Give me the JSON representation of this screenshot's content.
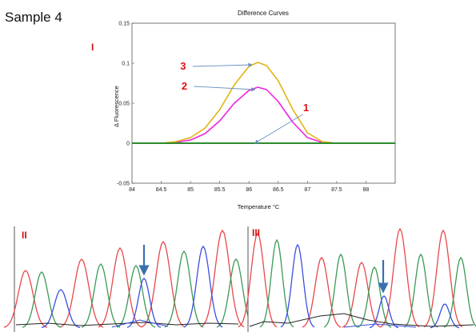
{
  "header": {
    "sample_label": "Sample 4"
  },
  "panels": {
    "I": "I",
    "II": "II",
    "III": "III"
  },
  "chart_data": {
    "type": "line",
    "title": "Difference Curves",
    "xlabel": "Temperature °C",
    "ylabel": "Δ Fluorescence",
    "xlim": [
      84,
      88.5
    ],
    "ylim": [
      -0.05,
      0.15
    ],
    "xticks": [
      "84",
      "84.5",
      "85",
      "85.5",
      "86",
      "86.5",
      "87",
      "87.5",
      "88"
    ],
    "yticks": [
      "0.15",
      "0.1",
      "0.05",
      "0",
      "-0.05"
    ],
    "series": [
      {
        "name": "1",
        "color": "#2e8b2e",
        "x": [
          84.0,
          84.5,
          85.0,
          85.5,
          86.0,
          86.5,
          87.0,
          87.5,
          88.0,
          88.5
        ],
        "y": [
          0,
          0,
          0,
          0,
          0,
          0,
          0,
          0,
          0,
          0
        ]
      },
      {
        "name": "2",
        "color": "#ee22dd",
        "x": [
          84.5,
          84.75,
          85.0,
          85.25,
          85.5,
          85.75,
          86.0,
          86.15,
          86.3,
          86.5,
          86.75,
          87.0,
          87.25,
          87.5,
          87.75
        ],
        "y": [
          0,
          0.001,
          0.004,
          0.012,
          0.028,
          0.05,
          0.066,
          0.07,
          0.067,
          0.052,
          0.026,
          0.007,
          0.001,
          0,
          0
        ]
      },
      {
        "name": "3",
        "color": "#e0b414",
        "x": [
          84.5,
          84.75,
          85.0,
          85.25,
          85.5,
          85.75,
          86.0,
          86.15,
          86.3,
          86.5,
          86.75,
          87.0,
          87.25,
          87.5,
          87.75
        ],
        "y": [
          0,
          0.002,
          0.007,
          0.019,
          0.042,
          0.073,
          0.096,
          0.101,
          0.097,
          0.078,
          0.042,
          0.013,
          0.002,
          0,
          0
        ]
      }
    ],
    "annotations": [
      {
        "text": "1",
        "arrow_to": [
          86.1,
          0.0
        ]
      },
      {
        "text": "2",
        "arrow_to": [
          86.1,
          0.067
        ]
      },
      {
        "text": "3",
        "arrow_to": [
          86.05,
          0.098
        ]
      }
    ]
  },
  "chromatograms": [
    {
      "id": "II",
      "arrow_color": "#3a6fb0"
    },
    {
      "id": "III",
      "arrow_color": "#3a6fb0"
    }
  ]
}
